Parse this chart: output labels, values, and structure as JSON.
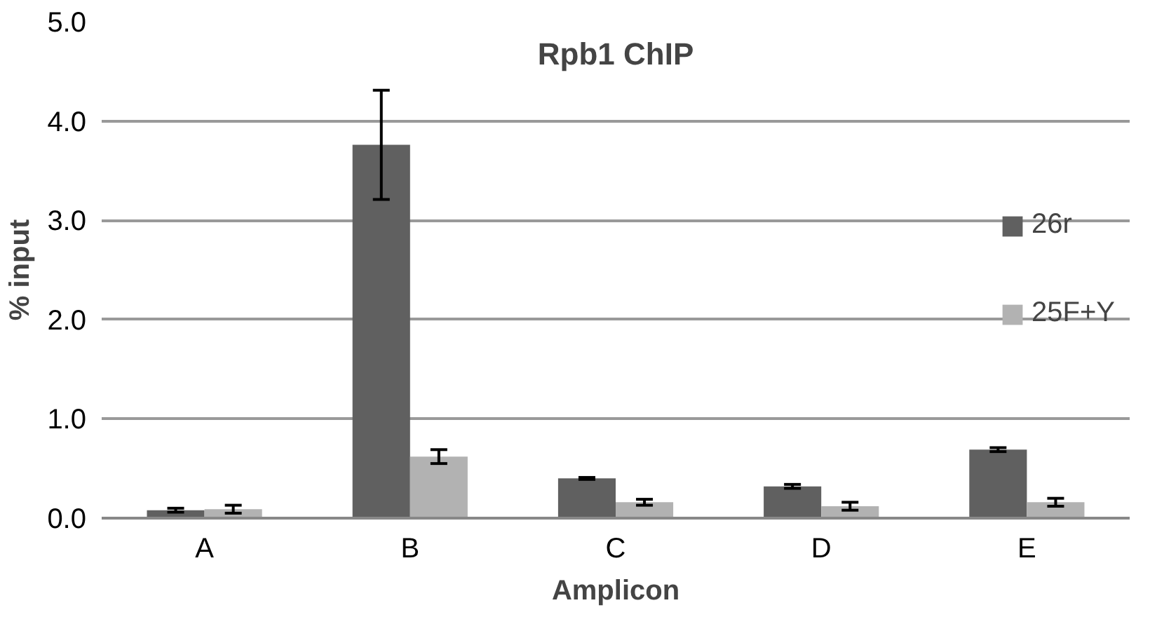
{
  "chart_data": {
    "type": "bar",
    "title": "Rpb1 ChIP",
    "xlabel": "Amplicon",
    "ylabel": "% input",
    "categories": [
      "A",
      "B",
      "C",
      "D",
      "E"
    ],
    "series": [
      {
        "name": "26r",
        "color": "#606060",
        "values": [
          0.08,
          3.76,
          0.4,
          0.32,
          0.69
        ],
        "errors": [
          0.02,
          0.55,
          0.01,
          0.02,
          0.02
        ]
      },
      {
        "name": "25F+Y",
        "color": "#b2b2b2",
        "values": [
          0.09,
          0.62,
          0.16,
          0.12,
          0.16
        ],
        "errors": [
          0.04,
          0.07,
          0.03,
          0.04,
          0.04
        ]
      }
    ],
    "ylim": [
      0,
      5
    ],
    "yticks": [
      {
        "value": 0,
        "label": "0.0"
      },
      {
        "value": 1,
        "label": "1.0"
      },
      {
        "value": 2,
        "label": "2.0"
      },
      {
        "value": 3,
        "label": "3.0"
      },
      {
        "value": 4,
        "label": "4.0"
      },
      {
        "value": 5,
        "label": "5.0"
      }
    ],
    "grid": "y",
    "legend": "right"
  }
}
